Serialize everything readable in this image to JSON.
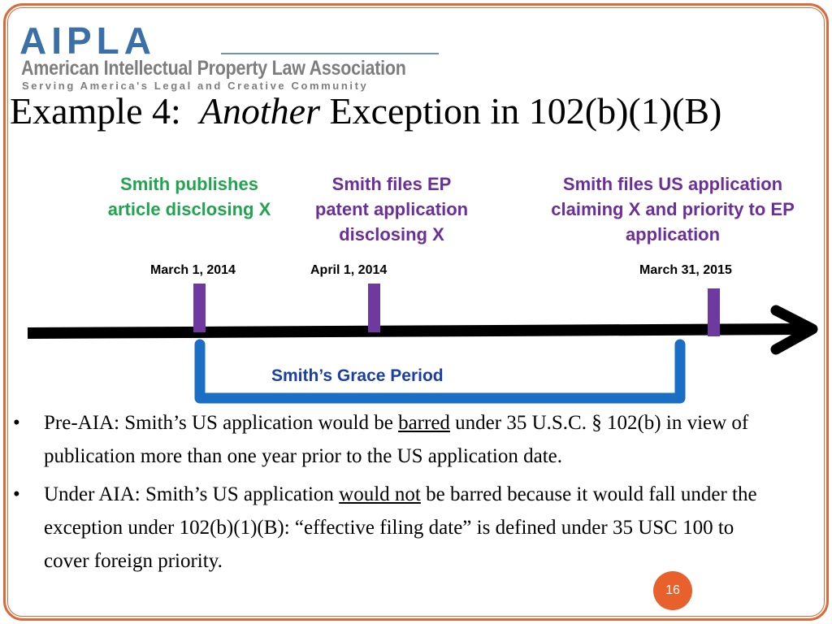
{
  "logo": {
    "acronym": "AIPLA",
    "name": "American Intellectual Property Law Association",
    "tagline": "Serving America's Legal and Creative Community",
    "color": "#3a6fa8"
  },
  "title": {
    "prefix": "Example 4:",
    "italic": "Another",
    "suffix": "Exception in 102(b)(1)(B)"
  },
  "timeline": {
    "events": [
      {
        "label_lines": [
          "Smith publishes",
          "article disclosing X"
        ],
        "date": "March 1, 2014",
        "color": "#21a44f"
      },
      {
        "label_lines": [
          "Smith files EP",
          "patent application",
          "disclosing X"
        ],
        "date": "April 1, 2014",
        "color": "#6a2f98"
      },
      {
        "label_lines": [
          "Smith files US application",
          "claiming X and priority to EP",
          "application"
        ],
        "date": "March 31, 2015",
        "color": "#6a2f98"
      }
    ],
    "marker_color": "#6f3aa0",
    "bracket_color": "#1a6fc4",
    "grace_label": "Smith’s Grace Period"
  },
  "bullets": {
    "b1": {
      "before": "Pre-AIA:  Smith’s US application would be ",
      "emph": "barred",
      "after": " under 35 U.S.C. § 102(b) in view of publication more than one year prior to the US application date."
    },
    "b2": {
      "before": "Under AIA: Smith’s US application ",
      "emph": "would not",
      "after": " be barred because it would fall under the exception under 102(b)(1)(B): “effective filing date” is defined under 35 USC 100 to cover foreign priority."
    },
    "bullet_char": "•"
  },
  "page_number": "16"
}
